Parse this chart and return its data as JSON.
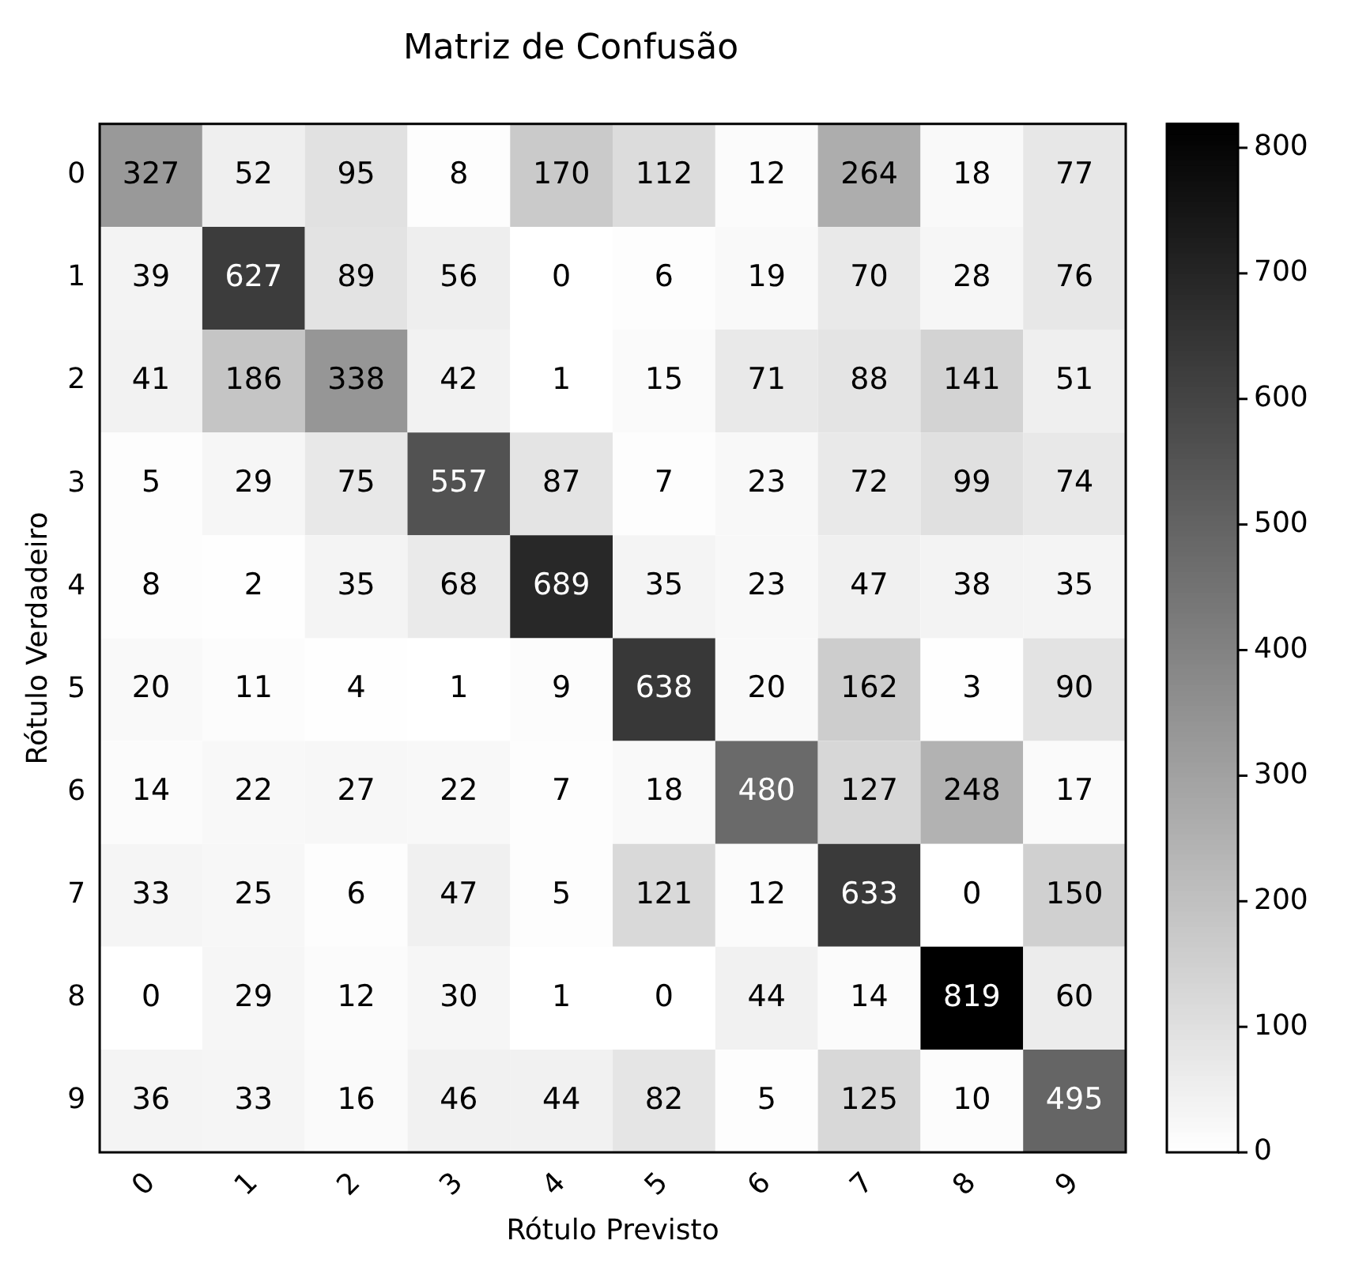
{
  "chart_data": {
    "type": "heatmap",
    "title": "Matriz de Confusão",
    "xlabel": "Rótulo Previsto",
    "ylabel": "Rótulo Verdadeiro",
    "categories": [
      "0",
      "1",
      "2",
      "3",
      "4",
      "5",
      "6",
      "7",
      "8",
      "9"
    ],
    "y_categories": [
      "0",
      "1",
      "2",
      "3",
      "4",
      "5",
      "6",
      "7",
      "8",
      "9"
    ],
    "cells": [
      [
        327,
        52,
        95,
        8,
        170,
        112,
        12,
        264,
        18,
        77
      ],
      [
        39,
        627,
        89,
        56,
        0,
        6,
        19,
        70,
        28,
        76
      ],
      [
        41,
        186,
        338,
        42,
        1,
        15,
        71,
        88,
        141,
        51
      ],
      [
        5,
        29,
        75,
        557,
        87,
        7,
        23,
        72,
        99,
        74
      ],
      [
        8,
        2,
        35,
        68,
        689,
        35,
        23,
        47,
        38,
        35
      ],
      [
        20,
        11,
        4,
        1,
        9,
        638,
        20,
        162,
        3,
        90
      ],
      [
        14,
        22,
        27,
        22,
        7,
        18,
        480,
        127,
        248,
        17
      ],
      [
        33,
        25,
        6,
        47,
        5,
        121,
        12,
        633,
        0,
        150
      ],
      [
        0,
        29,
        12,
        30,
        1,
        0,
        44,
        14,
        819,
        60
      ],
      [
        36,
        33,
        16,
        46,
        44,
        82,
        5,
        125,
        10,
        495
      ]
    ],
    "clim": [
      0,
      819
    ],
    "cticks": [
      0,
      100,
      200,
      300,
      400,
      500,
      600,
      700,
      800
    ],
    "data_labels": true
  }
}
